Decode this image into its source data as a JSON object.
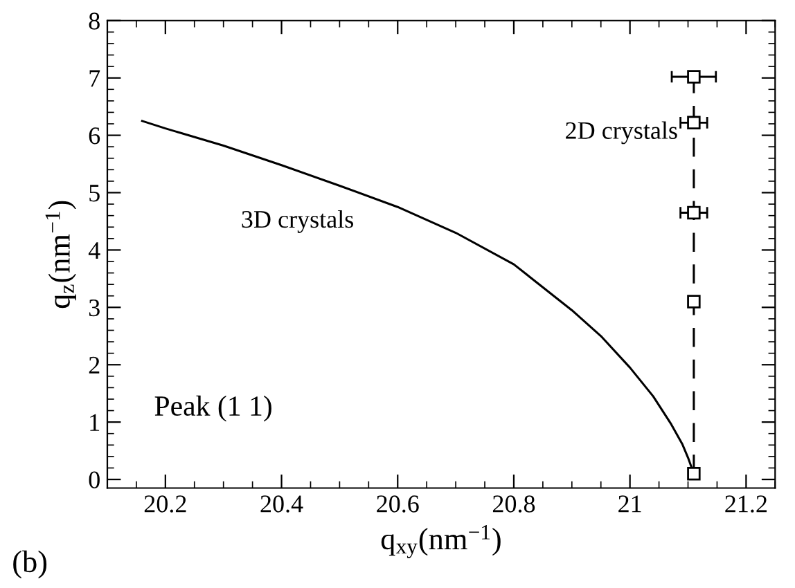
{
  "chart_data": {
    "type": "line",
    "xlabel": "q$_{xy}$(nm$^{−1}$)",
    "ylabel": "q$_{z}$(nm$^{−1}$)",
    "xlim": [
      20.1,
      21.25
    ],
    "ylim": [
      -0.15,
      8
    ],
    "xticks": [
      20.2,
      20.4,
      20.6,
      20.8,
      {
        "value": 21.0,
        "label": "21"
      },
      21.2
    ],
    "yticks": [
      0,
      1,
      2,
      3,
      4,
      5,
      6,
      7,
      8
    ],
    "grid": false,
    "legend": false,
    "series": [
      {
        "color": "#000000",
        "line_style": "solid",
        "marker": "none",
        "x": [
          20.16,
          20.2,
          20.3,
          20.4,
          20.5,
          20.6,
          20.7,
          20.8,
          20.9,
          20.95,
          21.0,
          21.04,
          21.07,
          21.09,
          21.1,
          21.11
        ],
        "values": [
          6.25,
          6.12,
          5.82,
          5.48,
          5.12,
          4.75,
          4.3,
          3.75,
          2.95,
          2.5,
          1.95,
          1.45,
          0.98,
          0.62,
          0.38,
          0.1
        ]
      },
      {
        "color": "#000000",
        "line_style": "dashed",
        "marker": "square",
        "x": [
          21.11,
          21.11,
          21.11,
          21.11,
          21.11
        ],
        "values": [
          0.1,
          3.1,
          4.65,
          6.22,
          7.02
        ],
        "xerrors": [
          null,
          null,
          0.023,
          0.023,
          0.038
        ]
      }
    ],
    "annotations": [
      "3D crystals",
      "2D crystals",
      "Peak (1 1)",
      "(b)"
    ]
  }
}
